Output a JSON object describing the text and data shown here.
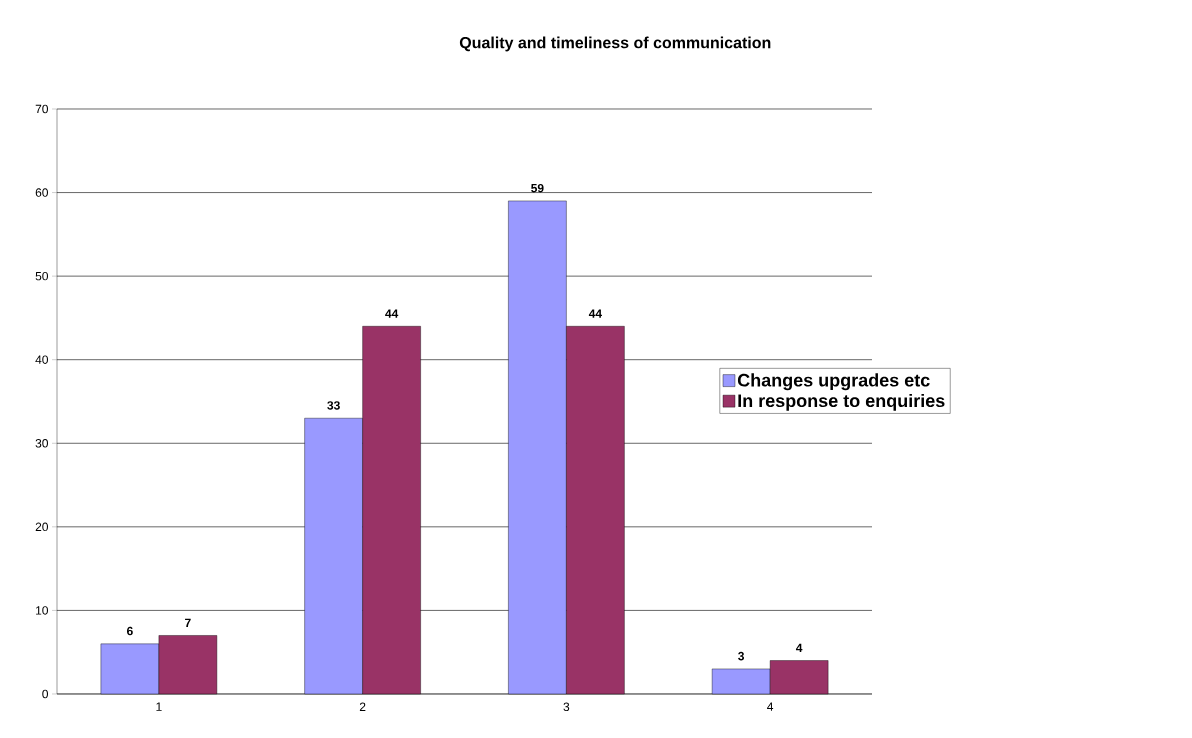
{
  "chart_data": {
    "type": "bar",
    "title": "Quality and timeliness of communication",
    "categories": [
      "1",
      "2",
      "3",
      "4"
    ],
    "series": [
      {
        "name": "Changes upgrades etc",
        "color": "#9999ff",
        "values": [
          6,
          33,
          59,
          3
        ]
      },
      {
        "name": "In response to enquiries",
        "color": "#993366",
        "values": [
          7,
          44,
          44,
          4
        ]
      }
    ],
    "ylim": [
      0,
      70
    ],
    "yticks": [
      0,
      10,
      20,
      30,
      40,
      50,
      60,
      70
    ],
    "grid": "y",
    "legend": "right",
    "data_labels": true
  }
}
